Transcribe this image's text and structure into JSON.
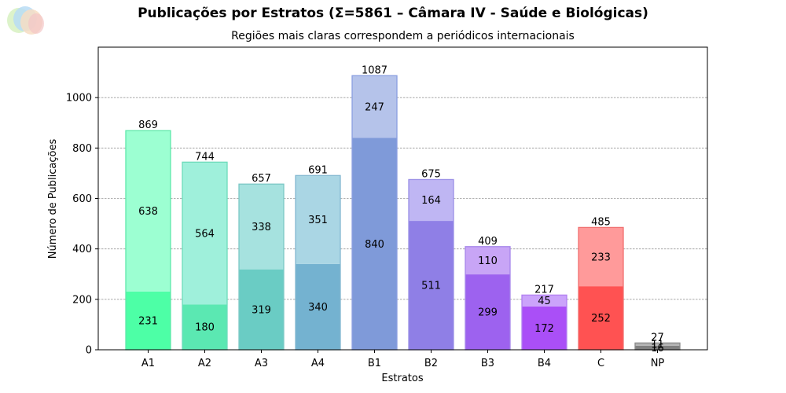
{
  "header": {
    "title": "Publicações por Estratos (Σ=5861 – Câmara IV - Saúde e Biológicas)",
    "subtitle": "Regiões mais claras correspondem a periódicos internacionais"
  },
  "chart_data": {
    "type": "bar",
    "stacked": true,
    "xlabel": "Estratos",
    "ylabel": "Número de Publicações",
    "ylim": [
      0,
      1200
    ],
    "yticks": [
      0,
      200,
      400,
      600,
      800,
      1000
    ],
    "grid": "horizontal dashed",
    "categories": [
      "A1",
      "A2",
      "A3",
      "A4",
      "B1",
      "B2",
      "B3",
      "B4",
      "C",
      "NP"
    ],
    "totals": [
      869,
      744,
      657,
      691,
      1087,
      675,
      409,
      217,
      485,
      27
    ],
    "series": [
      {
        "values": [
          231,
          180,
          319,
          340,
          840,
          511,
          299,
          172,
          252,
          16
        ]
      },
      {
        "values": [
          638,
          564,
          338,
          351,
          247,
          164,
          110,
          45,
          233,
          11
        ]
      }
    ],
    "colors": {
      "dark": [
        "#4dffa6",
        "#5be8b2",
        "#6accc4",
        "#74b2d0",
        "#7f9ad9",
        "#8f7fe6",
        "#9d62ef",
        "#aa4ff7",
        "#ff5252",
        "#808080"
      ],
      "light": [
        "#9cffd2",
        "#9ff0db",
        "#a6e2df",
        "#aad6e4",
        "#b5c3ea",
        "#bfb6f3",
        "#c8a5f6",
        "#cba3fb",
        "#ff9a9a",
        "#b3b3b3"
      ],
      "border": [
        "#5fe8aa",
        "#6ddcbb",
        "#7cc8c6",
        "#84b8d1",
        "#8a9ee0",
        "#9a8fe6",
        "#a686ea",
        "#b07ff0",
        "#f07070",
        "#8a8a8a"
      ]
    }
  }
}
